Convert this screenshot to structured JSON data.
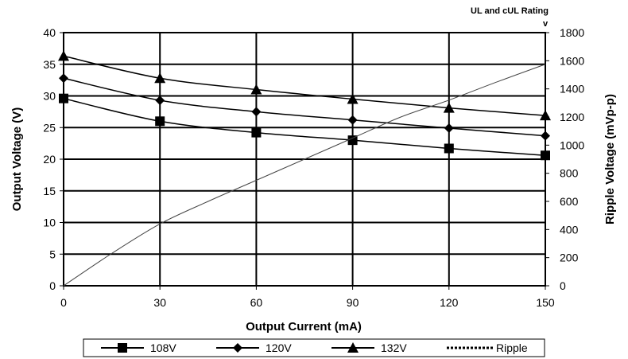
{
  "chart_data": {
    "type": "line",
    "x": [
      0,
      30,
      60,
      90,
      120,
      150
    ],
    "xlabel": "Output Current (mA)",
    "ylabel": "Output Voltage (V)",
    "y2label": "Ripple Voltage (mVp-p)",
    "xlim": [
      0,
      150
    ],
    "ylim": [
      0,
      40
    ],
    "y2lim": [
      0,
      1800
    ],
    "xticks": [
      "0",
      "30",
      "60",
      "90",
      "120",
      "150"
    ],
    "yticks": [
      "0",
      "5",
      "10",
      "15",
      "20",
      "25",
      "30",
      "35",
      "40"
    ],
    "y2ticks": [
      "0",
      "200",
      "400",
      "600",
      "800",
      "1000",
      "1200",
      "1400",
      "1600",
      "1800"
    ],
    "grid": true,
    "annotation": "UL and cUL Rating",
    "annotation_marker": "v",
    "series": [
      {
        "name": "108V",
        "marker": "square",
        "axis": "left",
        "values": [
          29.6,
          26.0,
          24.2,
          23.0,
          21.7,
          20.6
        ]
      },
      {
        "name": "120V",
        "marker": "diamond",
        "axis": "left",
        "values": [
          32.8,
          29.3,
          27.5,
          26.2,
          24.9,
          23.7
        ]
      },
      {
        "name": "132V",
        "marker": "triangle",
        "axis": "left",
        "values": [
          36.3,
          32.8,
          31.0,
          29.5,
          28.1,
          26.9
        ]
      },
      {
        "name": "Ripple",
        "marker": "none",
        "axis": "right",
        "x": [
          0,
          15,
          30,
          45,
          60,
          75,
          90,
          105,
          120,
          135,
          150
        ],
        "values": [
          0,
          230,
          440,
          600,
          750,
          900,
          1050,
          1200,
          1320,
          1450,
          1575
        ]
      }
    ],
    "legend_position": "bottom"
  }
}
